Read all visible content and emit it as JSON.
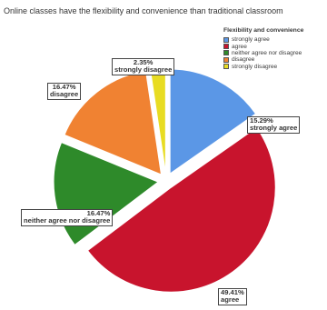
{
  "chart_data": {
    "type": "pie",
    "title": "Online classes have the flexibility and convenience than traditional classroom",
    "legend_title": "Flexibility and convenience",
    "legend_position": "top-right",
    "slices": [
      {
        "name": "strongly agree",
        "value": 15.29,
        "label_pct": "15.29%",
        "label_text": "strongly agree",
        "color": "#5b97e6"
      },
      {
        "name": "agree",
        "value": 49.41,
        "label_pct": "49.41%",
        "label_text": "agree",
        "color": "#c8142d"
      },
      {
        "name": "neither agree nor disagree",
        "value": 16.47,
        "label_pct": "16.47%",
        "label_text": "neither agree nor disagree",
        "color": "#2e8a2a"
      },
      {
        "name": "disagree",
        "value": 16.47,
        "label_pct": "16.47%",
        "label_text": "disagree",
        "color": "#f08232"
      },
      {
        "name": "strongly disagree",
        "value": 2.35,
        "label_pct": "2.35%",
        "label_text": "strongly disagree",
        "color": "#e8dc22"
      }
    ]
  }
}
